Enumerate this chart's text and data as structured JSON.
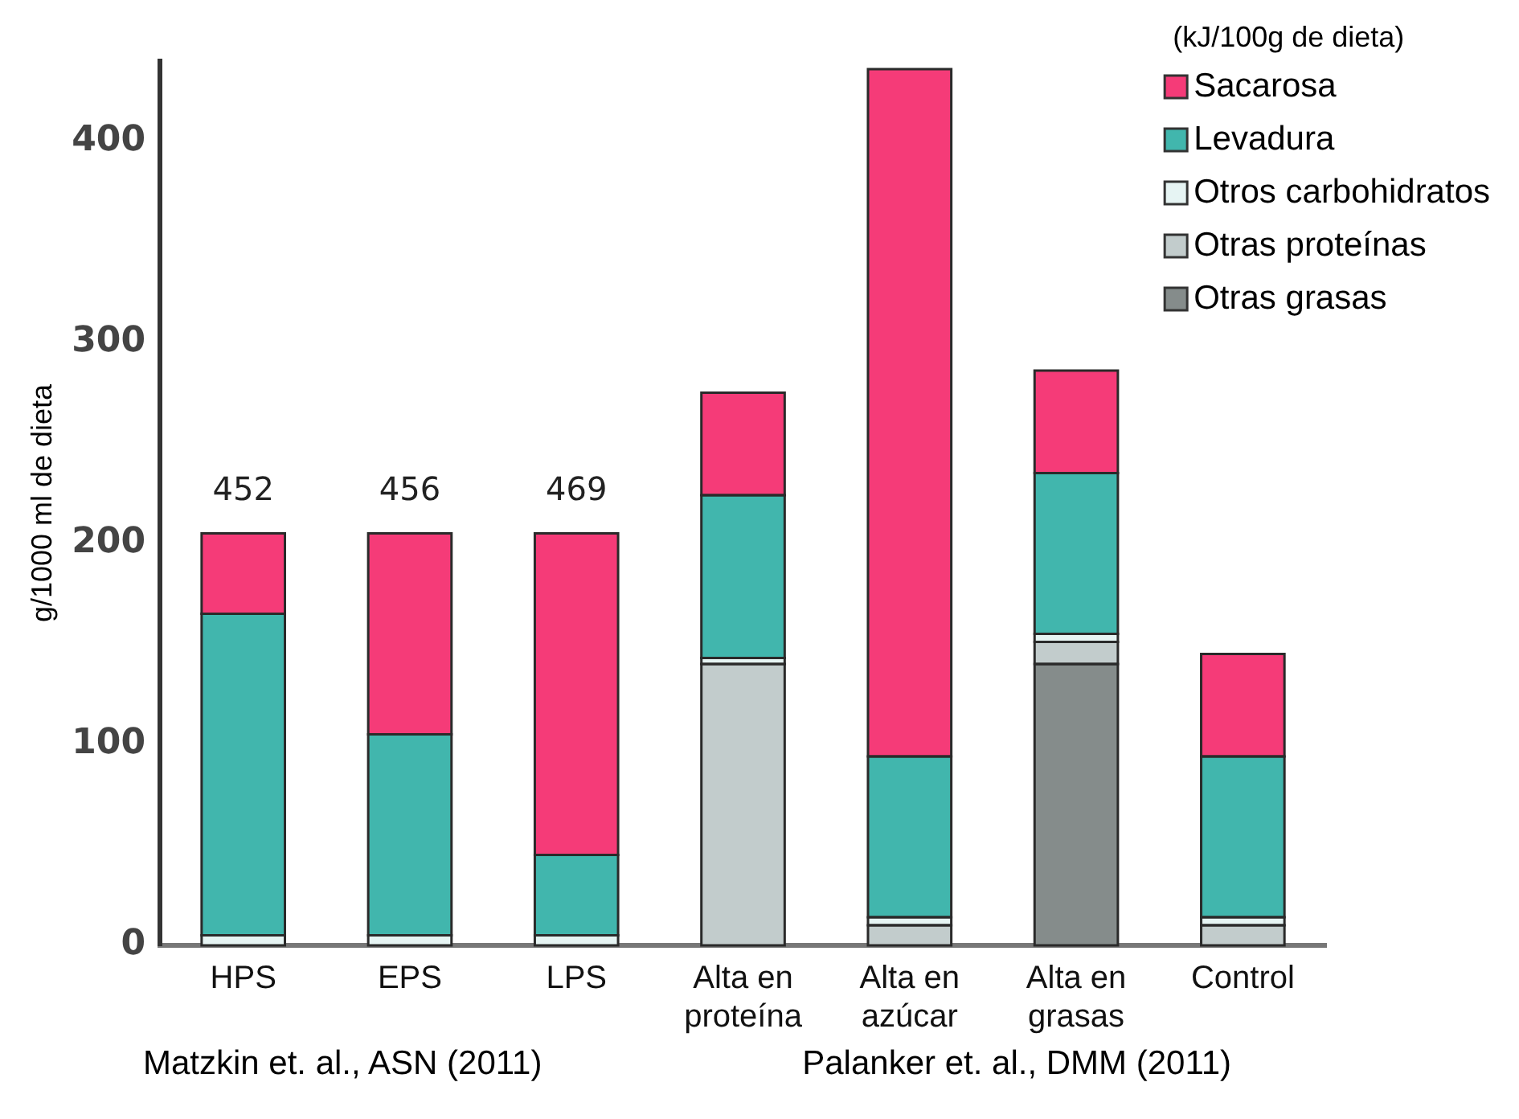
{
  "chart_data": {
    "type": "bar",
    "stacked": true,
    "ylabel": "g/1000 ml de dieta",
    "legend_title": "(kJ/100g de dieta)",
    "categories": [
      "HPS",
      "EPS",
      "LPS",
      "Alta en proteína",
      "Alta en azúcar",
      "Alta en grasas",
      "Control"
    ],
    "series": [
      {
        "name": "Otras grasas",
        "color": "#858c8b",
        "values": [
          0,
          0,
          0,
          0,
          0,
          140,
          0
        ]
      },
      {
        "name": "Otras proteínas",
        "color": "#c2cccc",
        "values": [
          0,
          0,
          0,
          140,
          10,
          11,
          10
        ]
      },
      {
        "name": "Otros carbohidratos",
        "color": "#e6f4f3",
        "values": [
          5,
          5,
          5,
          3,
          4,
          4,
          4
        ]
      },
      {
        "name": "Levadura",
        "color": "#41b6ad",
        "values": [
          160,
          100,
          40,
          81,
          80,
          80,
          80
        ]
      },
      {
        "name": "Sacarosa",
        "color": "#f53b78",
        "values": [
          40,
          100,
          160,
          51,
          342,
          51,
          51
        ]
      }
    ],
    "ylim": [
      0,
      440
    ],
    "yticks": [
      0,
      100,
      200,
      300,
      400
    ],
    "grid": false,
    "legend": "top right",
    "annotations": [
      {
        "text": "452",
        "x": "HPS",
        "y": 205
      },
      {
        "text": "456",
        "x": "EPS",
        "y": 205
      },
      {
        "text": "469",
        "x": "LPS",
        "y": 205
      },
      "Matzkin et. al., ASN (2011)",
      "Palanker et. al., DMM (2011)"
    ]
  }
}
